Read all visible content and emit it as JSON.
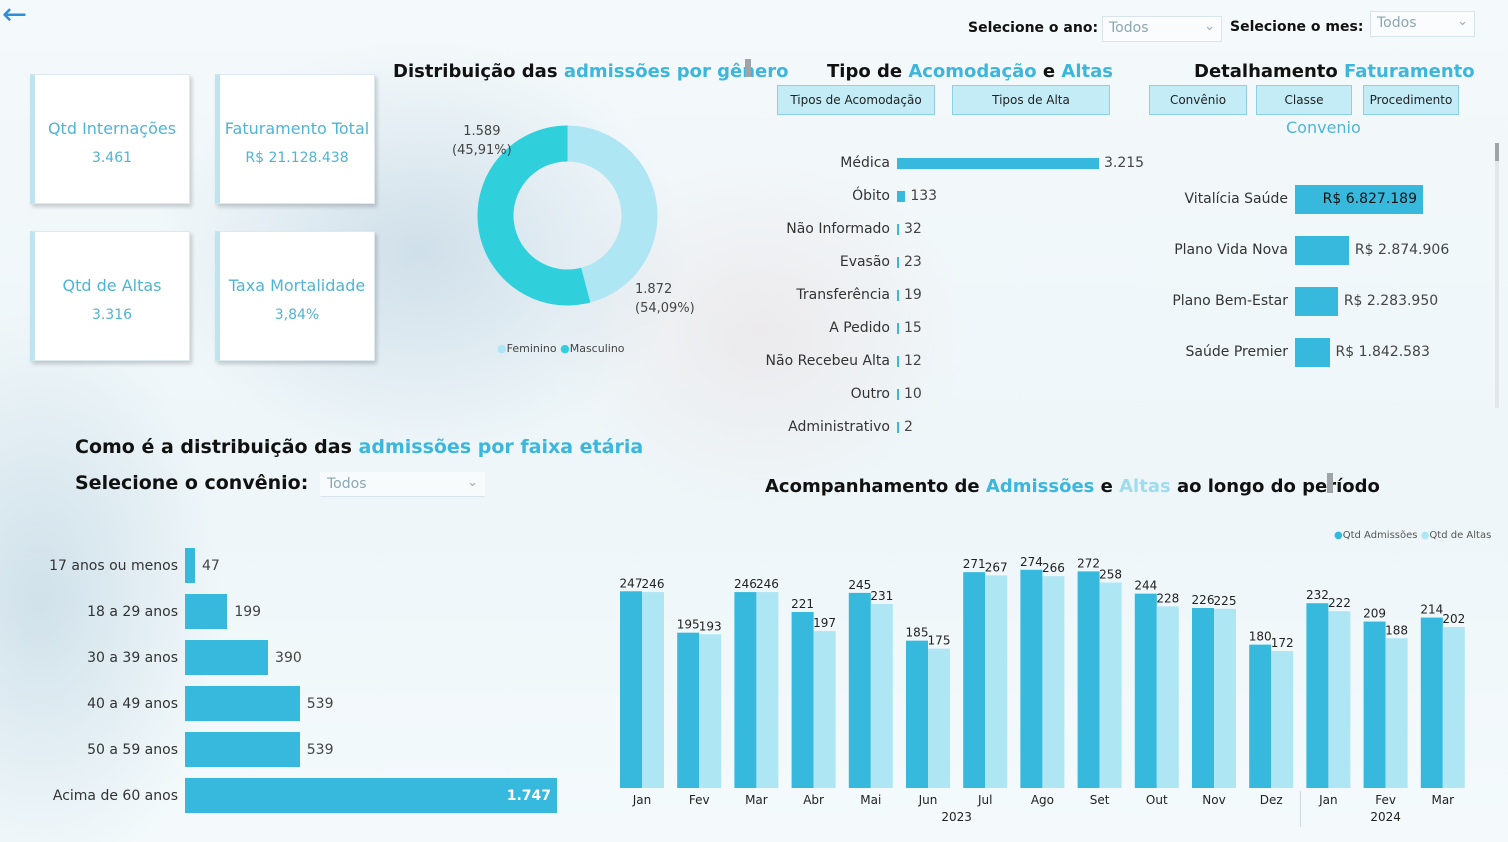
{
  "filters": {
    "ano_label": "Selecione o ano:",
    "ano_value": "Todos",
    "mes_label": "Selecione o mes:",
    "mes_value": "Todos",
    "convenio_label": "Selecione o convênio:",
    "convenio_value": "Todos"
  },
  "kpis": {
    "internacoes": {
      "title": "Qtd Internações",
      "value": "3.461"
    },
    "faturamento": {
      "title": "Faturamento Total",
      "value": "R$ 21.128.438"
    },
    "altas": {
      "title": "Qtd de Altas",
      "value": "3.316"
    },
    "mortalidade": {
      "title": "Taxa Mortalidade",
      "value": "3,84%"
    }
  },
  "genero": {
    "title_a": "Distribuição das ",
    "title_b": "admissões por gênero",
    "feminino_value": "1.589",
    "feminino_pct": "(45,91%)",
    "masculino_value": "1.872",
    "masculino_pct": "(54,09%)",
    "legend_feminino": "Feminino",
    "legend_masculino": "Masculino",
    "color_feminino": "#aee6f4",
    "color_masculino": "#2fd0dc"
  },
  "acomodacao": {
    "title_a": "Tipo de ",
    "title_b": "Acomodação",
    "title_c": " e ",
    "title_d": "Altas",
    "btn_acomodacao": "Tipos de Acomodação",
    "btn_alta": "Tipos de Alta",
    "items": [
      {
        "label": "Médica",
        "value": 3215,
        "text": "3.215"
      },
      {
        "label": "Óbito",
        "value": 133,
        "text": "133"
      },
      {
        "label": "Não Informado",
        "value": 32,
        "text": "32"
      },
      {
        "label": "Evasão",
        "value": 23,
        "text": "23"
      },
      {
        "label": "Transferência",
        "value": 19,
        "text": "19"
      },
      {
        "label": "A Pedido",
        "value": 15,
        "text": "15"
      },
      {
        "label": "Não Recebeu Alta",
        "value": 12,
        "text": "12"
      },
      {
        "label": "Outro",
        "value": 10,
        "text": "10"
      },
      {
        "label": "Administrativo",
        "value": 2,
        "text": "2"
      }
    ]
  },
  "faturamento": {
    "title_a": "Detalhamento ",
    "title_b": "Faturamento",
    "btn_convenio": "Convênio",
    "btn_classe": "Classe",
    "btn_procedimento": "Procedimento",
    "subtitle": "Convenio",
    "items": [
      {
        "label": "Vitalícia Saúde",
        "value": 6827189,
        "text": "R$ 6.827.189"
      },
      {
        "label": "Plano Vida Nova",
        "value": 2874906,
        "text": "R$ 2.874.906"
      },
      {
        "label": "Plano Bem-Estar",
        "value": 2283950,
        "text": "R$ 2.283.950"
      },
      {
        "label": "Saúde Premier",
        "value": 1842583,
        "text": "R$ 1.842.583"
      }
    ]
  },
  "faixa": {
    "title_a": "Como é a distribuição das ",
    "title_b": "admissões por faixa etária",
    "items": [
      {
        "label": "17 anos ou menos",
        "value": 47,
        "text": "47"
      },
      {
        "label": "18 a 29 anos",
        "value": 199,
        "text": "199"
      },
      {
        "label": "30 a 39 anos",
        "value": 390,
        "text": "390"
      },
      {
        "label": "40 a 49 anos",
        "value": 539,
        "text": "539"
      },
      {
        "label": "50 a 59 anos",
        "value": 539,
        "text": "539"
      },
      {
        "label": "Acima de 60 anos",
        "value": 1747,
        "text": "1.747"
      }
    ]
  },
  "periodo": {
    "title_a": "Acompanhamento de ",
    "title_b": "Admissões",
    "title_c": " e ",
    "title_d": "Altas",
    "title_e": " ao longo do período",
    "legend_admissoes": "Qtd Admissões",
    "legend_altas": "Qtd de Altas",
    "color_admissoes": "#36b9dd",
    "color_altas": "#aee6f4"
  },
  "chart_data": {
    "type": "bar",
    "categories": [
      "Jan",
      "Fev",
      "Mar",
      "Abr",
      "Mai",
      "Jun",
      "Jul",
      "Ago",
      "Set",
      "Out",
      "Nov",
      "Dez",
      "Jan",
      "Fev",
      "Mar"
    ],
    "years": [
      {
        "label": "2023",
        "months": 12
      },
      {
        "label": "2024",
        "months": 3
      }
    ],
    "series": [
      {
        "name": "Qtd Admissões",
        "values": [
          247,
          195,
          246,
          221,
          245,
          185,
          271,
          274,
          272,
          244,
          226,
          180,
          232,
          209,
          214
        ]
      },
      {
        "name": "Qtd de Altas",
        "values": [
          246,
          193,
          246,
          197,
          231,
          175,
          267,
          266,
          258,
          228,
          225,
          172,
          222,
          188,
          202
        ]
      }
    ],
    "ylim": [
      0,
      280
    ]
  }
}
